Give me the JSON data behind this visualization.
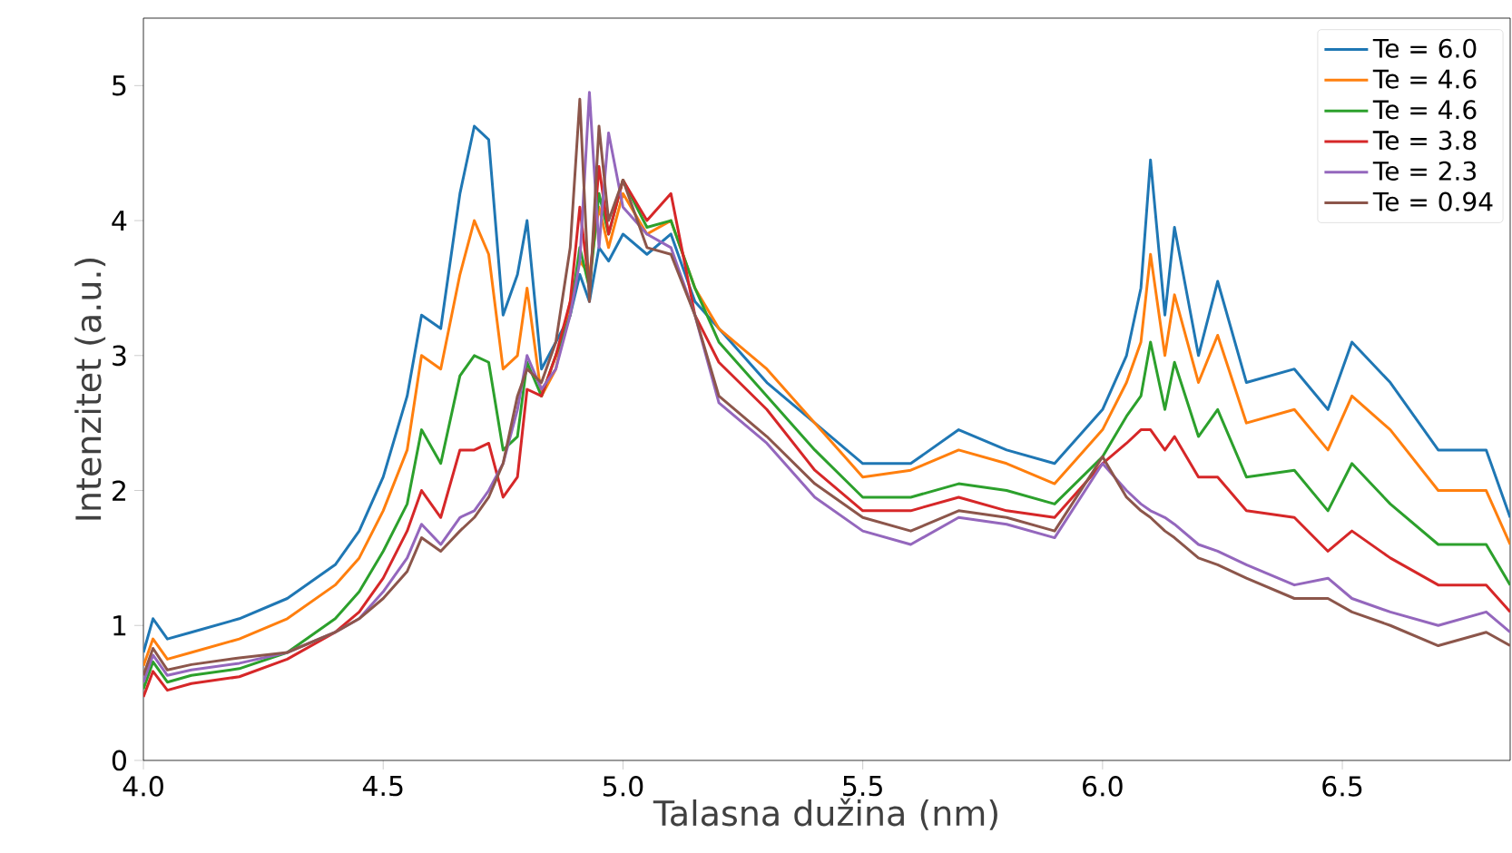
{
  "chart_data": {
    "type": "line",
    "xlabel": "Talasna dužina (nm)",
    "ylabel": "Intenzitet (a.u.)",
    "x": [
      4.0,
      4.02,
      4.05,
      4.1,
      4.2,
      4.3,
      4.4,
      4.45,
      4.5,
      4.55,
      4.58,
      4.62,
      4.66,
      4.69,
      4.72,
      4.75,
      4.78,
      4.8,
      4.83,
      4.86,
      4.89,
      4.91,
      4.93,
      4.95,
      4.97,
      5.0,
      5.05,
      5.1,
      5.15,
      5.2,
      5.3,
      5.4,
      5.5,
      5.6,
      5.7,
      5.8,
      5.9,
      6.0,
      6.05,
      6.08,
      6.1,
      6.13,
      6.15,
      6.2,
      6.24,
      6.3,
      6.4,
      6.47,
      6.52,
      6.6,
      6.7,
      6.8,
      6.85
    ],
    "series": [
      {
        "name": "Te = 6.0",
        "color": "#1f77b4",
        "values": [
          0.8,
          1.05,
          0.9,
          0.95,
          1.05,
          1.2,
          1.45,
          1.7,
          2.1,
          2.7,
          3.3,
          3.2,
          4.2,
          4.7,
          4.6,
          3.3,
          3.6,
          4.0,
          2.9,
          3.1,
          3.3,
          3.6,
          3.4,
          3.8,
          3.7,
          3.9,
          3.75,
          3.9,
          3.4,
          3.2,
          2.8,
          2.5,
          2.2,
          2.2,
          2.45,
          2.3,
          2.2,
          2.6,
          3.0,
          3.5,
          4.45,
          3.3,
          3.95,
          3.0,
          3.55,
          2.8,
          2.9,
          2.6,
          3.1,
          2.8,
          2.3,
          2.3,
          1.8
        ]
      },
      {
        "name": "Te = 4.6",
        "color": "#ff7f0e",
        "values": [
          0.7,
          0.9,
          0.75,
          0.8,
          0.9,
          1.05,
          1.3,
          1.5,
          1.85,
          2.3,
          3.0,
          2.9,
          3.6,
          4.0,
          3.75,
          2.9,
          3.0,
          3.5,
          2.7,
          2.9,
          3.4,
          3.7,
          3.6,
          4.1,
          3.8,
          4.2,
          3.9,
          4.0,
          3.5,
          3.2,
          2.9,
          2.5,
          2.1,
          2.15,
          2.3,
          2.2,
          2.05,
          2.45,
          2.8,
          3.1,
          3.75,
          3.0,
          3.45,
          2.8,
          3.15,
          2.5,
          2.6,
          2.3,
          2.7,
          2.45,
          2.0,
          2.0,
          1.6
        ]
      },
      {
        "name": "Te = 4.6",
        "color": "#2ca02c",
        "values": [
          0.53,
          0.73,
          0.58,
          0.63,
          0.68,
          0.8,
          1.05,
          1.25,
          1.55,
          1.9,
          2.45,
          2.2,
          2.85,
          3.0,
          2.95,
          2.3,
          2.4,
          2.95,
          2.7,
          3.0,
          3.3,
          3.8,
          3.5,
          4.2,
          3.9,
          4.3,
          3.95,
          4.0,
          3.5,
          3.1,
          2.7,
          2.3,
          1.95,
          1.95,
          2.05,
          2.0,
          1.9,
          2.25,
          2.55,
          2.7,
          3.1,
          2.6,
          2.95,
          2.4,
          2.6,
          2.1,
          2.15,
          1.85,
          2.2,
          1.9,
          1.6,
          1.6,
          1.3
        ]
      },
      {
        "name": "Te = 3.8",
        "color": "#d62728",
        "values": [
          0.47,
          0.66,
          0.52,
          0.57,
          0.62,
          0.75,
          0.95,
          1.1,
          1.35,
          1.7,
          2.0,
          1.8,
          2.3,
          2.3,
          2.35,
          1.95,
          2.1,
          2.75,
          2.7,
          3.0,
          3.4,
          4.1,
          3.5,
          4.4,
          3.9,
          4.3,
          4.0,
          4.2,
          3.3,
          2.95,
          2.6,
          2.15,
          1.85,
          1.85,
          1.95,
          1.85,
          1.8,
          2.2,
          2.35,
          2.45,
          2.45,
          2.3,
          2.4,
          2.1,
          2.1,
          1.85,
          1.8,
          1.55,
          1.7,
          1.5,
          1.3,
          1.3,
          1.1
        ]
      },
      {
        "name": "Te = 2.3",
        "color": "#9467bd",
        "values": [
          0.58,
          0.78,
          0.63,
          0.67,
          0.72,
          0.8,
          0.95,
          1.05,
          1.25,
          1.5,
          1.75,
          1.6,
          1.8,
          1.85,
          2.0,
          2.2,
          2.6,
          3.0,
          2.75,
          2.9,
          3.3,
          3.7,
          4.95,
          3.8,
          4.65,
          4.1,
          3.9,
          3.8,
          3.3,
          2.65,
          2.35,
          1.95,
          1.7,
          1.6,
          1.8,
          1.75,
          1.65,
          2.2,
          2.0,
          1.9,
          1.85,
          1.8,
          1.75,
          1.6,
          1.55,
          1.45,
          1.3,
          1.35,
          1.2,
          1.1,
          1.0,
          1.1,
          0.95
        ]
      },
      {
        "name": "Te = 0.94",
        "color": "#8c564b",
        "values": [
          0.63,
          0.83,
          0.67,
          0.71,
          0.76,
          0.8,
          0.95,
          1.05,
          1.2,
          1.4,
          1.65,
          1.55,
          1.7,
          1.8,
          1.95,
          2.2,
          2.7,
          2.9,
          2.8,
          3.1,
          3.8,
          4.9,
          3.4,
          4.7,
          4.0,
          4.3,
          3.8,
          3.75,
          3.3,
          2.7,
          2.4,
          2.05,
          1.8,
          1.7,
          1.85,
          1.8,
          1.7,
          2.25,
          1.95,
          1.85,
          1.8,
          1.7,
          1.65,
          1.5,
          1.45,
          1.35,
          1.2,
          1.2,
          1.1,
          1.0,
          0.85,
          0.95,
          0.85
        ]
      }
    ],
    "xlim": [
      4.0,
      6.85
    ],
    "ylim": [
      0,
      5.5
    ],
    "xticks": [
      {
        "value": 4,
        "label": "4.0"
      },
      4.5,
      {
        "value": 5,
        "label": "5.0"
      },
      5.5,
      {
        "value": 6,
        "label": "6.0"
      },
      6.5
    ],
    "yticks": [
      0,
      1,
      2,
      3,
      4,
      5
    ],
    "legend": "top right",
    "grid": false
  }
}
